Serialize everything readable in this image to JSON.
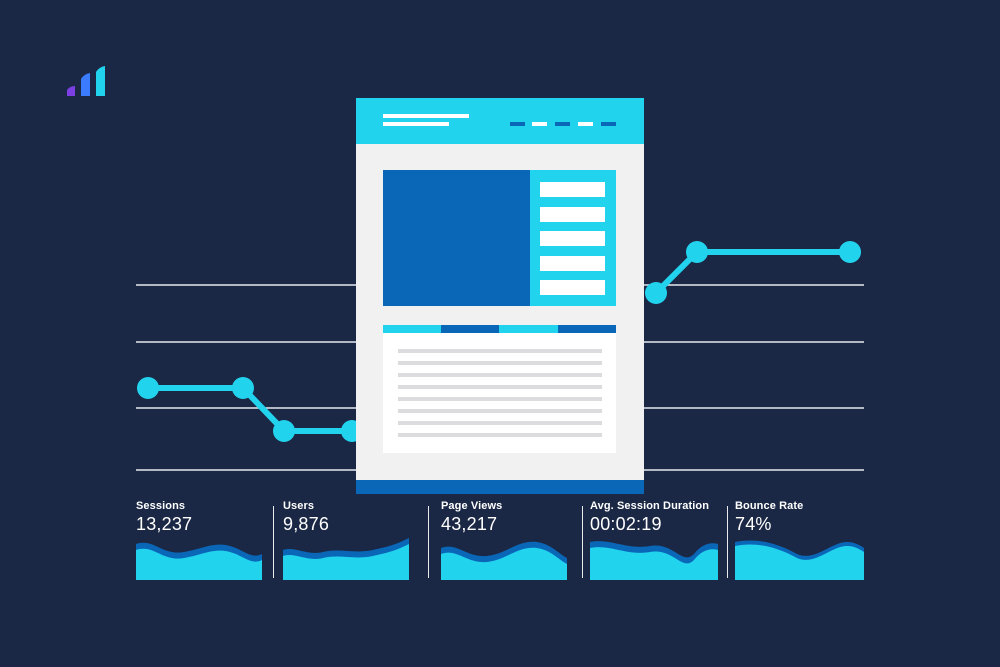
{
  "brand": {
    "logo_icon": "bar-chart-logo-icon",
    "colors": [
      "#7b3fe4",
      "#3a7bff",
      "#22d3ee"
    ]
  },
  "colors": {
    "background": "#1b2845",
    "accent": "#22d3ee",
    "primary_blue": "#0a67b8",
    "page_bg": "#f1f1f2",
    "grid": "#e6e9ef"
  },
  "trend_line": {
    "icon": "line-chart-icon"
  },
  "webpage_mockup": {
    "icon": "webpage-wireframe-icon"
  },
  "metrics": [
    {
      "label": "Sessions",
      "value": "13,237"
    },
    {
      "label": "Users",
      "value": "9,876"
    },
    {
      "label": "Page Views",
      "value": "43,217"
    },
    {
      "label": "Avg. Session Duration",
      "value": "00:02:19"
    },
    {
      "label": "Bounce Rate",
      "value": "74%"
    }
  ]
}
